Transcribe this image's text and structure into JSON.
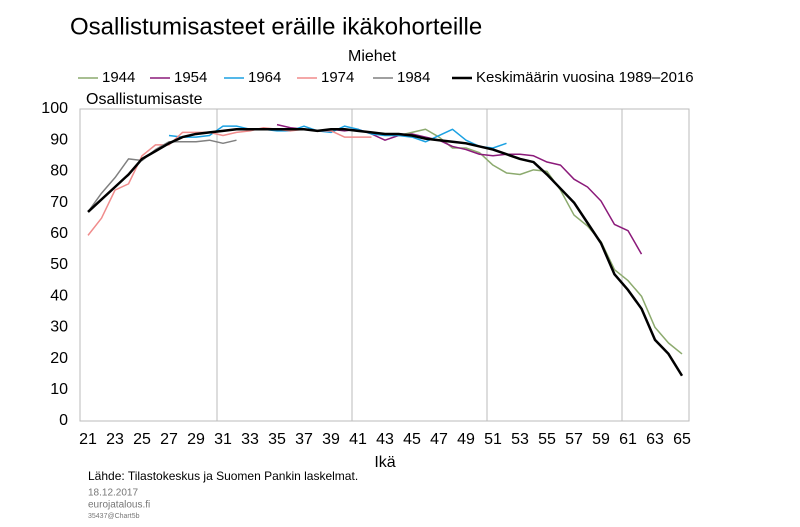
{
  "chart_data": {
    "type": "line",
    "title": "Osallistumisasteet eräille ikäkohorteille",
    "subtitle": "Miehet",
    "y_label": "Osallistumisaste",
    "x_label": "Ikä",
    "source": "Lähde: Tilastokeskus ja Suomen Pankin laskelmat.",
    "footer": [
      "18.12.2017",
      "eurojatalous.fi",
      "35437@Chart5b"
    ],
    "x": [
      21,
      22,
      23,
      24,
      25,
      26,
      27,
      28,
      29,
      30,
      31,
      32,
      33,
      34,
      35,
      36,
      37,
      38,
      39,
      40,
      41,
      42,
      43,
      44,
      45,
      46,
      47,
      48,
      49,
      50,
      51,
      52,
      53,
      54,
      55,
      56,
      57,
      58,
      59,
      60,
      61,
      62,
      63,
      64,
      65
    ],
    "xlim": [
      21,
      65
    ],
    "xticks": [
      21,
      23,
      25,
      27,
      29,
      31,
      33,
      35,
      37,
      39,
      41,
      43,
      45,
      47,
      49,
      51,
      53,
      55,
      57,
      59,
      61,
      63,
      65
    ],
    "ylim": [
      0,
      100
    ],
    "yticks": [
      0,
      10,
      20,
      30,
      40,
      50,
      60,
      70,
      80,
      90,
      100
    ],
    "series": [
      {
        "name": "1944",
        "color": "#8caa6e",
        "values": [
          null,
          null,
          null,
          null,
          null,
          null,
          null,
          null,
          null,
          null,
          null,
          null,
          null,
          null,
          null,
          null,
          null,
          null,
          null,
          null,
          null,
          null,
          null,
          91.5,
          92.5,
          93.5,
          91,
          87.5,
          87.5,
          86,
          82,
          79.5,
          79,
          80.5,
          80,
          74,
          66,
          62.5,
          57.5,
          48.5,
          45,
          40,
          30,
          25,
          21.5
        ]
      },
      {
        "name": "1954",
        "color": "#8b1a7a",
        "values": [
          null,
          null,
          null,
          null,
          null,
          null,
          null,
          null,
          null,
          null,
          null,
          null,
          null,
          null,
          95,
          94,
          93.5,
          93,
          93.5,
          93,
          93.5,
          92,
          90,
          91.5,
          92,
          91,
          90,
          88,
          87,
          85.5,
          85,
          85.5,
          85.5,
          85,
          83,
          82,
          77.5,
          75,
          70.5,
          63,
          61,
          53.5,
          null,
          null,
          null
        ]
      },
      {
        "name": "1964",
        "color": "#1ba1e2",
        "values": [
          null,
          null,
          null,
          null,
          null,
          null,
          91.5,
          91,
          91,
          91.5,
          94.5,
          94.5,
          93.5,
          93.5,
          93,
          93,
          94.5,
          93,
          92.5,
          94.5,
          93.5,
          92,
          91.5,
          91.5,
          91,
          89.5,
          91.5,
          93.5,
          90,
          88,
          87.5,
          89,
          null,
          null,
          null,
          null,
          null,
          null,
          null,
          null,
          null,
          null,
          null,
          null,
          null
        ]
      },
      {
        "name": "1974",
        "color": "#f08c8c",
        "values": [
          59.5,
          65,
          74,
          76,
          85,
          88.5,
          88.5,
          92.5,
          92.5,
          92.5,
          91.5,
          92.5,
          93,
          94,
          93.5,
          93,
          93.5,
          93,
          93,
          91,
          91,
          91,
          null,
          null,
          null,
          null,
          null,
          null,
          null,
          null,
          null,
          null,
          null,
          null,
          null,
          null,
          null,
          null,
          null,
          null,
          null,
          null,
          null,
          null,
          null
        ]
      },
      {
        "name": "1984",
        "color": "#808080",
        "values": [
          67,
          73,
          78,
          84,
          83.5,
          87,
          89.5,
          89.5,
          89.5,
          90,
          89,
          90,
          null,
          null,
          null,
          null,
          null,
          null,
          null,
          null,
          null,
          null,
          null,
          null,
          null,
          null,
          null,
          null,
          null,
          null,
          null,
          null,
          null,
          null,
          null,
          null,
          null,
          null,
          null,
          null,
          null,
          null,
          null,
          null,
          null
        ]
      },
      {
        "name": "Keskimäärin vuosina 1989–2016",
        "color": "#000000",
        "values": [
          67,
          71,
          75,
          79,
          84,
          86.5,
          89,
          91,
          92,
          92.5,
          93,
          93.5,
          93.5,
          93.5,
          93.5,
          93.5,
          93.5,
          93,
          93.5,
          93.5,
          93,
          92.5,
          92,
          92,
          91.5,
          90.5,
          90,
          89.5,
          89,
          88,
          87,
          85.5,
          84,
          83,
          79,
          74.5,
          70,
          63.5,
          57,
          47,
          42,
          36,
          26,
          21.5,
          14.5
        ]
      }
    ]
  }
}
